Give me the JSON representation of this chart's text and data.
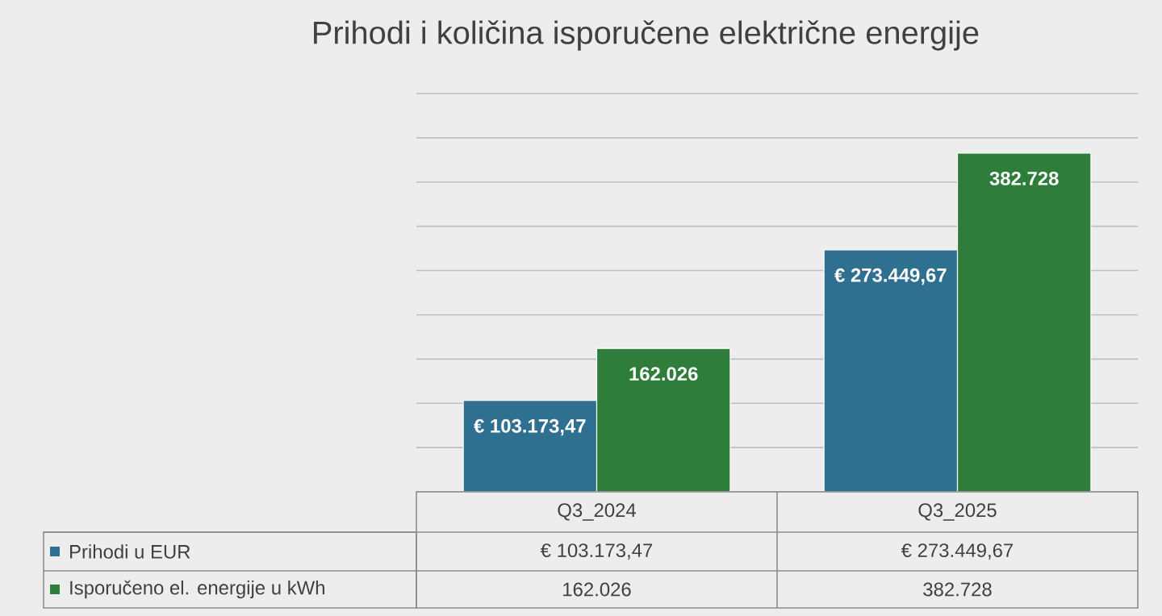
{
  "chart_data": {
    "type": "bar",
    "title": "Prihodi i količina isporučene električne energije",
    "categories": [
      "Q3_2024",
      "Q3_2025"
    ],
    "series": [
      {
        "name": "Prihodi u EUR",
        "color": "#2f6f8f",
        "values": [
          103173.47,
          273449.67
        ],
        "value_labels": [
          "€ 103.173,47",
          "€ 273.449,67"
        ]
      },
      {
        "name": "Isporučeno el. energije u kWh",
        "color": "#2e7d3b",
        "values": [
          162026,
          382728
        ],
        "value_labels": [
          "162.026",
          "382.728"
        ]
      }
    ],
    "ylim": [
      0,
      450000
    ],
    "yticks": [
      {
        "value": 0,
        "label": null
      },
      {
        "value": 50000,
        "label": null
      },
      {
        "value": 100000,
        "label": null
      },
      {
        "value": 150000,
        "label": null
      },
      {
        "value": 200000,
        "label": null
      },
      {
        "value": 250000,
        "label": null
      },
      {
        "value": 300000,
        "label": null
      },
      {
        "value": 350000,
        "label": null
      },
      {
        "value": 400000,
        "label": null
      },
      {
        "value": 450000,
        "label": null
      }
    ],
    "grid": "y",
    "legend": "bottom",
    "tick_labels": "x"
  }
}
